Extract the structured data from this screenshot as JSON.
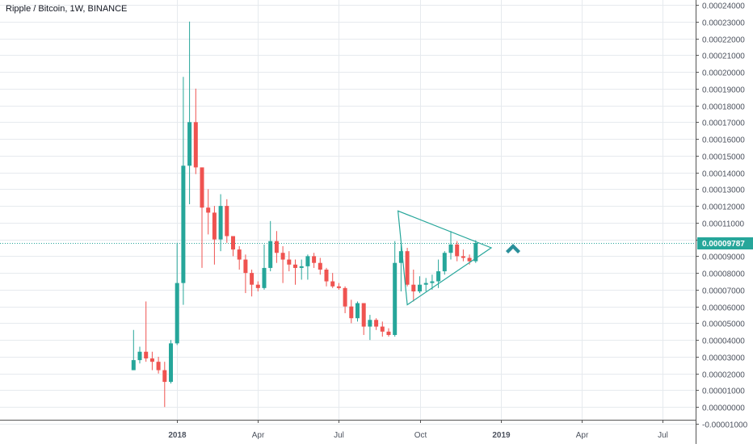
{
  "header": {
    "title": "Ripple / Bitcoin, 1W, BINANCE"
  },
  "colors": {
    "up": "#26a69a",
    "down": "#ef5350",
    "grid": "#e6eaee",
    "axis_text": "#4c525e",
    "pattern": "#26a69a",
    "price_line": "#26a69a",
    "price_badge_bg": "#26a69a",
    "price_badge_text": "#ffffff",
    "arrow": "#2a8f9a"
  },
  "icons": {
    "arrow": "arrow-up-icon"
  },
  "current_price": {
    "value": 9.787e-05,
    "label": "0.00009787"
  },
  "chart_data": {
    "type": "candlestick",
    "title": "Ripple / Bitcoin, 1W, BINANCE",
    "ylim": [
      -1e-05,
      0.00024
    ],
    "y_ticks": [
      {
        "value": 0.00024,
        "label": "0.00024000"
      },
      {
        "value": 0.00023,
        "label": "0.00023000"
      },
      {
        "value": 0.00022,
        "label": "0.00022000"
      },
      {
        "value": 0.00021,
        "label": "0.00021000"
      },
      {
        "value": 0.0002,
        "label": "0.00020000"
      },
      {
        "value": 0.00019,
        "label": "0.00019000"
      },
      {
        "value": 0.00018,
        "label": "0.00018000"
      },
      {
        "value": 0.00017,
        "label": "0.00017000"
      },
      {
        "value": 0.00016,
        "label": "0.00016000"
      },
      {
        "value": 0.00015,
        "label": "0.00015000"
      },
      {
        "value": 0.00014,
        "label": "0.00014000"
      },
      {
        "value": 0.00013,
        "label": "0.00013000"
      },
      {
        "value": 0.00012,
        "label": "0.00012000"
      },
      {
        "value": 0.00011,
        "label": "0.00011000"
      },
      {
        "value": 0.0001,
        "label": "0.00010000"
      },
      {
        "value": 9e-05,
        "label": "0.00009000"
      },
      {
        "value": 8e-05,
        "label": "0.00008000"
      },
      {
        "value": 7e-05,
        "label": "0.00007000"
      },
      {
        "value": 6e-05,
        "label": "0.00006000"
      },
      {
        "value": 5e-05,
        "label": "0.00005000"
      },
      {
        "value": 4e-05,
        "label": "0.00004000"
      },
      {
        "value": 3e-05,
        "label": "0.00003000"
      },
      {
        "value": 2e-05,
        "label": "0.00002000"
      },
      {
        "value": 1e-05,
        "label": "0.00001000"
      },
      {
        "value": 0.0,
        "label": "0.00000000"
      },
      {
        "value": -1e-05,
        "label": "-0.00001000"
      }
    ],
    "x_ticks": [
      {
        "week": 7,
        "label": "2018"
      },
      {
        "week": 20,
        "label": "Apr"
      },
      {
        "week": 33,
        "label": "Jul"
      },
      {
        "week": 46,
        "label": "Oct"
      },
      {
        "week": 59,
        "label": "2019"
      },
      {
        "week": 72,
        "label": "Apr"
      },
      {
        "week": 85,
        "label": "Jul"
      }
    ],
    "candles": [
      {
        "o": 2.2e-05,
        "h": 4.6e-05,
        "l": 2.2e-05,
        "c": 2.8e-05
      },
      {
        "o": 2.8e-05,
        "h": 3.6e-05,
        "l": 2.6e-05,
        "c": 3.3e-05
      },
      {
        "o": 3.3e-05,
        "h": 6.3e-05,
        "l": 2.7e-05,
        "c": 2.9e-05
      },
      {
        "o": 2.9e-05,
        "h": 3.3e-05,
        "l": 2.2e-05,
        "c": 2.7e-05
      },
      {
        "o": 2.7e-05,
        "h": 3e-05,
        "l": 2e-05,
        "c": 2.2e-05
      },
      {
        "o": 2.2e-05,
        "h": 2.7e-05,
        "l": 0.0,
        "c": 1.5e-05
      },
      {
        "o": 1.5e-05,
        "h": 4e-05,
        "l": 1.4e-05,
        "c": 3.8e-05
      },
      {
        "o": 3.8e-05,
        "h": 9.8e-05,
        "l": 3.7e-05,
        "c": 7.4e-05
      },
      {
        "o": 7.4e-05,
        "h": 0.000197,
        "l": 6.1e-05,
        "c": 0.000144
      },
      {
        "o": 0.000144,
        "h": 0.00023,
        "l": 0.000121,
        "c": 0.00017
      },
      {
        "o": 0.00017,
        "h": 0.00019,
        "l": 0.000139,
        "c": 0.000143
      },
      {
        "o": 0.000143,
        "h": 0.000142,
        "l": 8.3e-05,
        "c": 0.000119
      },
      {
        "o": 0.000119,
        "h": 0.00013,
        "l": 0.000103,
        "c": 0.000116
      },
      {
        "o": 0.000116,
        "h": 0.00012,
        "l": 8.5e-05,
        "c": 0.0001
      },
      {
        "o": 0.0001,
        "h": 0.000127,
        "l": 9.3e-05,
        "c": 0.00012
      },
      {
        "o": 0.00012,
        "h": 0.000124,
        "l": 9.8e-05,
        "c": 0.000102
      },
      {
        "o": 0.000102,
        "h": 0.000102,
        "l": 9e-05,
        "c": 9.4e-05
      },
      {
        "o": 9.4e-05,
        "h": 9.6e-05,
        "l": 8.2e-05,
        "c": 8.8e-05
      },
      {
        "o": 8.8e-05,
        "h": 9.1e-05,
        "l": 6.8e-05,
        "c": 8e-05
      },
      {
        "o": 8e-05,
        "h": 8.2e-05,
        "l": 6.6e-05,
        "c": 7.3e-05
      },
      {
        "o": 7.3e-05,
        "h": 7.5e-05,
        "l": 6.9e-05,
        "c": 7.1e-05
      },
      {
        "o": 7.1e-05,
        "h": 9.7e-05,
        "l": 7e-05,
        "c": 8.3e-05
      },
      {
        "o": 8.3e-05,
        "h": 0.000111,
        "l": 8.1e-05,
        "c": 9.9e-05
      },
      {
        "o": 9.9e-05,
        "h": 0.000105,
        "l": 8.6e-05,
        "c": 9.2e-05
      },
      {
        "o": 9.2e-05,
        "h": 9.6e-05,
        "l": 7.4e-05,
        "c": 8.8e-05
      },
      {
        "o": 8.8e-05,
        "h": 9.3e-05,
        "l": 8.1e-05,
        "c": 8.5e-05
      },
      {
        "o": 8.5e-05,
        "h": 8.8e-05,
        "l": 7.3e-05,
        "c": 8.3e-05
      },
      {
        "o": 8.3e-05,
        "h": 8.8e-05,
        "l": 7.6e-05,
        "c": 8.4e-05
      },
      {
        "o": 8.4e-05,
        "h": 9.1e-05,
        "l": 7.6e-05,
        "c": 9e-05
      },
      {
        "o": 9e-05,
        "h": 9.2e-05,
        "l": 8.3e-05,
        "c": 8.6e-05
      },
      {
        "o": 8.6e-05,
        "h": 8.9e-05,
        "l": 7.9e-05,
        "c": 8.2e-05
      },
      {
        "o": 8.2e-05,
        "h": 8.3e-05,
        "l": 7.2e-05,
        "c": 7.5e-05
      },
      {
        "o": 7.5e-05,
        "h": 8e-05,
        "l": 7.1e-05,
        "c": 7.2e-05
      },
      {
        "o": 7.2e-05,
        "h": 7.4e-05,
        "l": 7e-05,
        "c": 7.1e-05
      },
      {
        "o": 7.1e-05,
        "h": 7.2e-05,
        "l": 5.6e-05,
        "c": 6e-05
      },
      {
        "o": 6e-05,
        "h": 6.4e-05,
        "l": 5e-05,
        "c": 5.3e-05
      },
      {
        "o": 5.3e-05,
        "h": 6.3e-05,
        "l": 5.1e-05,
        "c": 6.2e-05
      },
      {
        "o": 6.2e-05,
        "h": 6.2e-05,
        "l": 4.3e-05,
        "c": 4.8e-05
      },
      {
        "o": 4.8e-05,
        "h": 5.5e-05,
        "l": 4e-05,
        "c": 5.2e-05
      },
      {
        "o": 5.2e-05,
        "h": 5.3e-05,
        "l": 4.6e-05,
        "c": 4.8e-05
      },
      {
        "o": 4.8e-05,
        "h": 5.1e-05,
        "l": 4.2e-05,
        "c": 4.5e-05
      },
      {
        "o": 4.5e-05,
        "h": 4.7e-05,
        "l": 4.2e-05,
        "c": 4.3e-05
      },
      {
        "o": 4.3e-05,
        "h": 9.9e-05,
        "l": 4.2e-05,
        "c": 8.6e-05
      },
      {
        "o": 8.6e-05,
        "h": 9.8e-05,
        "l": 6.9e-05,
        "c": 9.3e-05
      },
      {
        "o": 9.3e-05,
        "h": 9.5e-05,
        "l": 7.2e-05,
        "c": 7.3e-05
      },
      {
        "o": 7.3e-05,
        "h": 8.2e-05,
        "l": 6.3e-05,
        "c": 6.9e-05
      },
      {
        "o": 6.9e-05,
        "h": 7.8e-05,
        "l": 6.8e-05,
        "c": 7.3e-05
      },
      {
        "o": 7.3e-05,
        "h": 7.7e-05,
        "l": 6.9e-05,
        "c": 7.4e-05
      },
      {
        "o": 7.4e-05,
        "h": 7.9e-05,
        "l": 7e-05,
        "c": 7.5e-05
      },
      {
        "o": 7.5e-05,
        "h": 8.8e-05,
        "l": 7.1e-05,
        "c": 8.1e-05
      },
      {
        "o": 8.1e-05,
        "h": 9.3e-05,
        "l": 7.9e-05,
        "c": 9.2e-05
      },
      {
        "o": 9.2e-05,
        "h": 0.000105,
        "l": 8.8e-05,
        "c": 9.7e-05
      },
      {
        "o": 9.7e-05,
        "h": 9.9e-05,
        "l": 8.7e-05,
        "c": 9e-05
      },
      {
        "o": 9e-05,
        "h": 9.4e-05,
        "l": 8.7e-05,
        "c": 8.9e-05
      },
      {
        "o": 8.9e-05,
        "h": 9.1e-05,
        "l": 8.5e-05,
        "c": 8.7e-05
      },
      {
        "o": 8.7e-05,
        "h": 9.95e-05,
        "l": 8.6e-05,
        "c": 9.79e-05
      }
    ],
    "triangle": [
      {
        "week": 42.5,
        "price": 0.000117
      },
      {
        "week": 57.5,
        "price": 9.5e-05
      },
      {
        "week": 44.0,
        "price": 6.1e-05
      }
    ],
    "annotation_arrow": {
      "week": 61.0,
      "price": 9.55e-05
    }
  }
}
